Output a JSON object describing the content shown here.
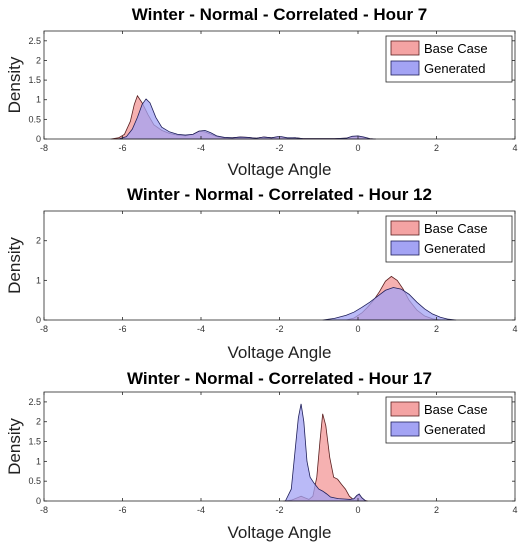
{
  "chart_data": [
    {
      "type": "area",
      "title": "Winter - Normal - Correlated - Hour 7",
      "xlabel": "Voltage Angle",
      "ylabel": "Density",
      "xlim": [
        -8,
        4
      ],
      "ylim": [
        0,
        2.75
      ],
      "xticks": [
        -8,
        -6,
        -4,
        -2,
        0,
        2,
        4
      ],
      "yticks": [
        0,
        0.5,
        1,
        1.5,
        2,
        2.5
      ],
      "ytick_labels": [
        "0",
        "0.5",
        "1",
        "1.5",
        "2",
        "2.5"
      ],
      "legend_position": "top-right",
      "series": [
        {
          "name": "Base Case",
          "color": "#f4a3a3",
          "x": [
            -6.3,
            -6.1,
            -5.95,
            -5.8,
            -5.7,
            -5.62,
            -5.5,
            -5.35,
            -5.2,
            -5.0,
            -4.8,
            -4.6,
            -4.4,
            -4.2,
            -4.05,
            -3.9,
            -3.75,
            -3.6,
            -3.4,
            -3.2,
            -3.0,
            -2.8,
            -2.6,
            -2.4,
            -2.2,
            -2.05,
            -1.95,
            -1.8,
            -1.6,
            -1.4,
            -1.0,
            -0.6,
            -0.3,
            -0.15,
            0.0,
            0.15,
            0.3,
            0.45
          ],
          "values": [
            0,
            0.03,
            0.12,
            0.45,
            0.88,
            1.1,
            0.92,
            0.62,
            0.36,
            0.22,
            0.14,
            0.1,
            0.08,
            0.12,
            0.2,
            0.18,
            0.12,
            0.06,
            0.03,
            0.03,
            0.05,
            0.04,
            0.02,
            0.05,
            0.03,
            0.05,
            0.05,
            0.02,
            0.03,
            0.01,
            0.01,
            0.01,
            0.02,
            0.06,
            0.07,
            0.04,
            0.01,
            0
          ]
        },
        {
          "name": "Generated",
          "color": "#a3a3f4",
          "x": [
            -6.1,
            -5.9,
            -5.75,
            -5.62,
            -5.5,
            -5.4,
            -5.3,
            -5.15,
            -5.0,
            -4.8,
            -4.6,
            -4.4,
            -4.2,
            -4.05,
            -3.9,
            -3.75,
            -3.6,
            -3.4,
            -3.2,
            -3.0,
            -2.8,
            -2.6,
            -2.4,
            -2.2,
            -2.05,
            -1.95,
            -1.8,
            -1.6,
            -1.4,
            -1.0,
            -0.6,
            -0.3,
            -0.15,
            0.0,
            0.15,
            0.3,
            0.45
          ],
          "values": [
            0,
            0.06,
            0.25,
            0.55,
            0.88,
            1.02,
            0.92,
            0.55,
            0.3,
            0.18,
            0.12,
            0.1,
            0.12,
            0.2,
            0.22,
            0.16,
            0.08,
            0.04,
            0.03,
            0.05,
            0.04,
            0.02,
            0.05,
            0.03,
            0.06,
            0.06,
            0.03,
            0.03,
            0.01,
            0.01,
            0.01,
            0.02,
            0.07,
            0.08,
            0.05,
            0.01,
            0
          ]
        }
      ]
    },
    {
      "type": "area",
      "title": "Winter - Normal - Correlated - Hour 12",
      "xlabel": "Voltage Angle",
      "ylabel": "Density",
      "xlim": [
        -8,
        4
      ],
      "ylim": [
        0,
        2.75
      ],
      "xticks": [
        -8,
        -6,
        -4,
        -2,
        0,
        2,
        4
      ],
      "yticks": [
        0,
        1,
        2
      ],
      "ytick_labels": [
        "0",
        "1",
        "2"
      ],
      "legend_position": "top-right",
      "series": [
        {
          "name": "Base Case",
          "color": "#f4a3a3",
          "x": [
            -0.3,
            -0.1,
            0.1,
            0.25,
            0.4,
            0.55,
            0.7,
            0.85,
            1.0,
            1.15,
            1.3,
            1.5,
            1.7,
            1.9,
            2.1
          ],
          "values": [
            0,
            0.05,
            0.18,
            0.33,
            0.5,
            0.72,
            0.98,
            1.1,
            1.0,
            0.78,
            0.5,
            0.25,
            0.1,
            0.03,
            0
          ]
        },
        {
          "name": "Generated",
          "color": "#a3a3f4",
          "x": [
            -0.9,
            -0.6,
            -0.3,
            -0.1,
            0.1,
            0.3,
            0.5,
            0.7,
            0.9,
            1.1,
            1.3,
            1.5,
            1.7,
            1.9,
            2.1,
            2.3,
            2.5
          ],
          "values": [
            0,
            0.04,
            0.12,
            0.2,
            0.32,
            0.45,
            0.6,
            0.75,
            0.82,
            0.78,
            0.65,
            0.45,
            0.28,
            0.15,
            0.07,
            0.02,
            0
          ]
        }
      ]
    },
    {
      "type": "area",
      "title": "Winter - Normal - Correlated - Hour 17",
      "xlabel": "Voltage Angle",
      "ylabel": "Density",
      "xlim": [
        -8,
        4
      ],
      "ylim": [
        0,
        2.75
      ],
      "xticks": [
        -8,
        -6,
        -4,
        -2,
        0,
        2,
        4
      ],
      "yticks": [
        0,
        0.5,
        1,
        1.5,
        2,
        2.5
      ],
      "ytick_labels": [
        "0",
        "0.5",
        "1",
        "1.5",
        "2",
        "2.5"
      ],
      "legend_position": "top-right",
      "series": [
        {
          "name": "Base Case",
          "color": "#f4a3a3",
          "x": [
            -1.9,
            -1.7,
            -1.55,
            -1.45,
            -1.35,
            -1.25,
            -1.15,
            -1.05,
            -0.97,
            -0.9,
            -0.82,
            -0.72,
            -0.62,
            -0.52,
            -0.42,
            -0.32,
            -0.22,
            -0.12,
            -0.04,
            0.02,
            0.08,
            0.16,
            0.25
          ],
          "values": [
            0,
            0.02,
            0.08,
            0.12,
            0.08,
            0.04,
            0.12,
            0.6,
            1.5,
            2.2,
            1.9,
            1.1,
            0.6,
            0.55,
            0.42,
            0.3,
            0.12,
            0.04,
            0.12,
            0.16,
            0.1,
            0.02,
            0
          ]
        },
        {
          "name": "Generated",
          "color": "#a3a3f4",
          "x": [
            -1.85,
            -1.7,
            -1.6,
            -1.52,
            -1.45,
            -1.38,
            -1.3,
            -1.22,
            -1.12,
            -1.0,
            -0.9,
            -0.8,
            -0.7,
            -0.6,
            -0.5,
            -0.35,
            -0.2,
            -0.1,
            -0.03,
            0.03,
            0.1,
            0.2
          ],
          "values": [
            0,
            0.3,
            1.3,
            2.1,
            2.45,
            2.0,
            1.0,
            0.6,
            0.45,
            0.3,
            0.25,
            0.18,
            0.1,
            0.08,
            0.06,
            0.05,
            0.04,
            0.06,
            0.14,
            0.18,
            0.08,
            0
          ]
        }
      ]
    }
  ]
}
